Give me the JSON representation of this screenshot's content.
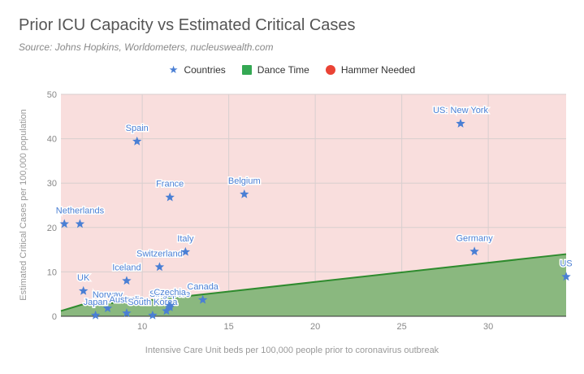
{
  "chart_data": {
    "type": "scatter",
    "title": "Prior ICU Capacity vs Estimated Critical Cases",
    "subtitle": "Source: Johns Hopkins, Worldometers, nucleuswealth.com",
    "xlabel": "Intensive Care Unit beds per 100,000 people prior to coronavirus outbreak",
    "ylabel": "Estimated Critical Cases per 100,000 population",
    "xlim": [
      5.3,
      34.5
    ],
    "ylim": [
      0,
      50
    ],
    "x_ticks": [
      "10",
      "15",
      "20",
      "25",
      "30"
    ],
    "y_ticks": [
      "0",
      "10",
      "20",
      "30",
      "40",
      "50"
    ],
    "legend": [
      "Countries",
      "Dance Time",
      "Hammer Needed"
    ],
    "legend_position": "top",
    "grid": true,
    "series": [
      {
        "name": "Countries",
        "points": [
          {
            "label": "",
            "x": 5.5,
            "y": 20.8
          },
          {
            "label": "Netherlands",
            "x": 6.4,
            "y": 20.8
          },
          {
            "label": "UK",
            "x": 6.6,
            "y": 5.7
          },
          {
            "label": "Norway",
            "x": 8.0,
            "y": 1.8
          },
          {
            "label": "Japan",
            "x": 7.3,
            "y": 0.2
          },
          {
            "label": "Australia",
            "x": 9.1,
            "y": 0.7
          },
          {
            "label": "South Korea",
            "x": 10.6,
            "y": 0.2
          },
          {
            "label": "Singapore",
            "x": 11.6,
            "y": 2.0
          },
          {
            "label": "",
            "x": 11.4,
            "y": 1.2
          },
          {
            "label": "Iceland",
            "x": 9.1,
            "y": 8.0
          },
          {
            "label": "Czechia",
            "x": 11.6,
            "y": 2.4
          },
          {
            "label": "Canada",
            "x": 13.5,
            "y": 3.7
          },
          {
            "label": "Switzerland",
            "x": 11.0,
            "y": 11.1
          },
          {
            "label": "Italy",
            "x": 12.5,
            "y": 14.5
          },
          {
            "label": "Spain",
            "x": 9.7,
            "y": 39.4
          },
          {
            "label": "France",
            "x": 11.6,
            "y": 26.8
          },
          {
            "label": "Belgium",
            "x": 15.9,
            "y": 27.5
          },
          {
            "label": "US: New York",
            "x": 28.4,
            "y": 43.4
          },
          {
            "label": "Germany",
            "x": 29.2,
            "y": 14.6
          },
          {
            "label": "US",
            "x": 34.5,
            "y": 8.9
          }
        ]
      },
      {
        "name": "Dance Time",
        "area_boundary": [
          [
            5.3,
            1.2
          ],
          [
            6.5,
            2.6
          ],
          [
            8.0,
            2.9
          ],
          [
            9.5,
            3.2
          ],
          [
            34.5,
            14.0
          ]
        ]
      },
      {
        "name": "Hammer Needed",
        "region": "above Dance Time boundary"
      }
    ]
  },
  "colors": {
    "countries": "#4a7fd4",
    "dance_time": "#34a853",
    "hammer_needed": "#ea4335",
    "hammer_background": "#f9dedd",
    "dance_fill": "#8ab87f",
    "dance_line": "#2e8b2e"
  }
}
